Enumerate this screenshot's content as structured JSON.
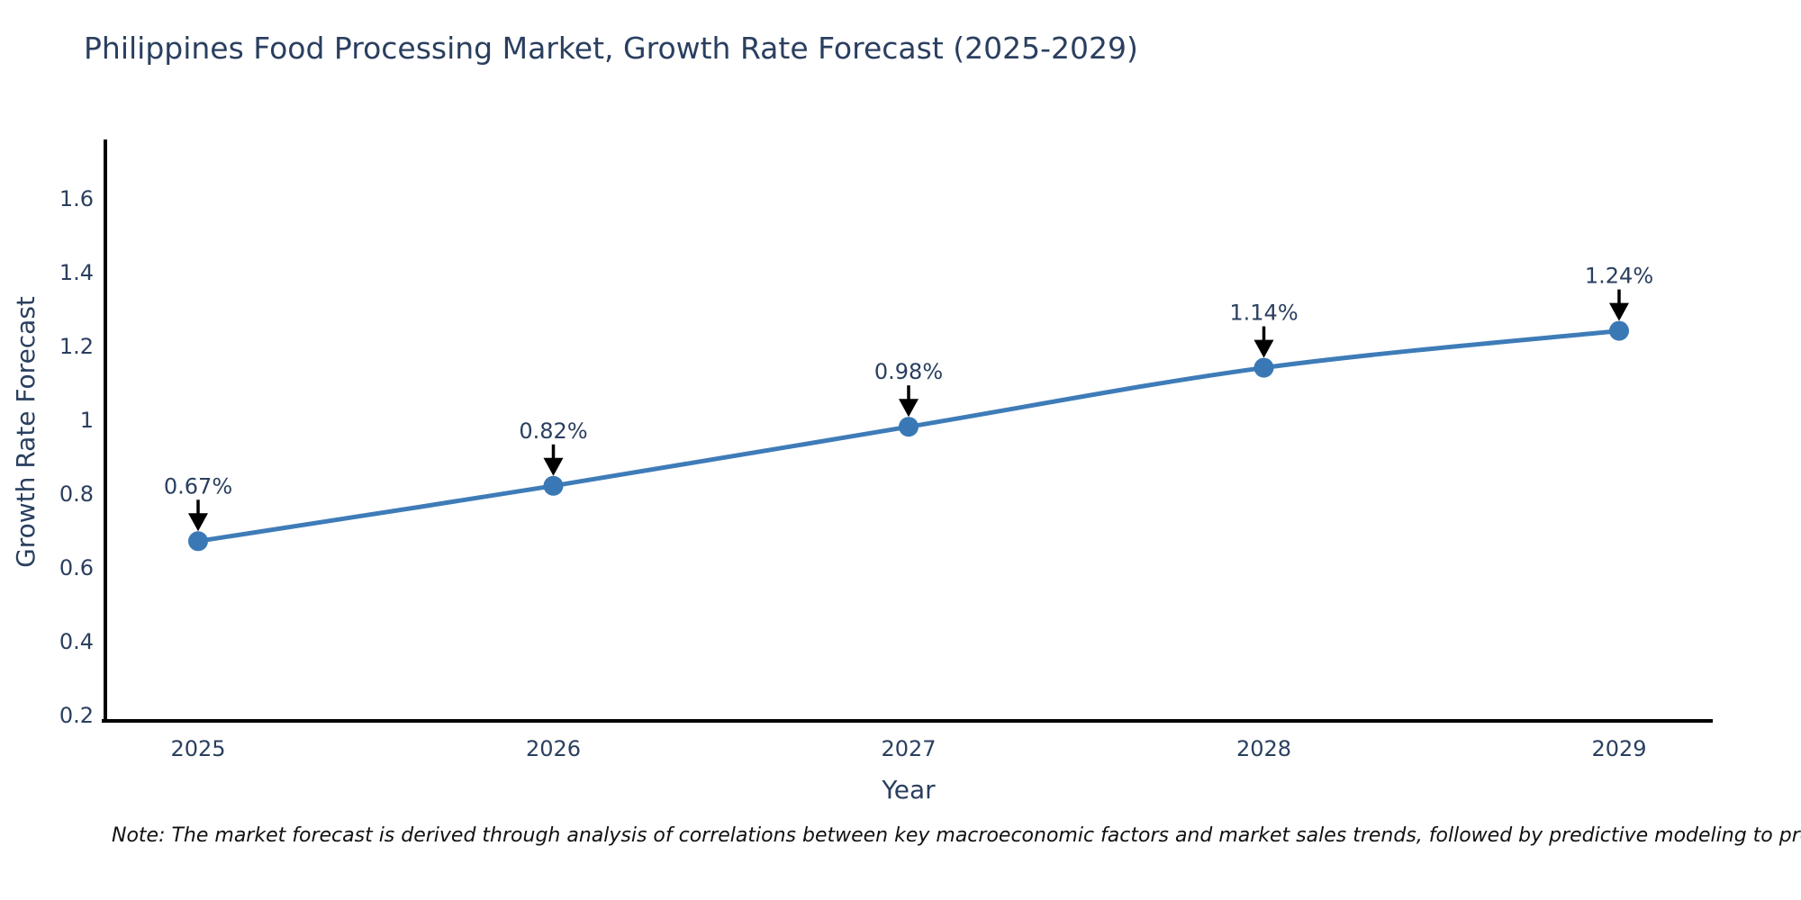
{
  "chart_data": {
    "type": "line",
    "title": "Philippines Food Processing Market, Growth Rate Forecast (2025-2029)",
    "xlabel": "Year",
    "ylabel": "Growth Rate Forecast",
    "categories": [
      "2025",
      "2026",
      "2027",
      "2028",
      "2029"
    ],
    "series": [
      {
        "name": "Growth Rate Forecast",
        "values": [
          0.67,
          0.82,
          0.98,
          1.14,
          1.24
        ]
      }
    ],
    "point_labels": [
      "0.67%",
      "0.82%",
      "0.98%",
      "1.14%",
      "1.24%"
    ],
    "y_ticks": [
      0.2,
      0.4,
      0.6,
      0.8,
      1.0,
      1.2,
      1.4,
      1.6
    ],
    "y_tick_labels": [
      "0.2",
      "0.4",
      "0.6",
      "0.8",
      "1",
      "1.2",
      "1.4",
      "1.6"
    ],
    "ylim": [
      0.18,
      1.77
    ],
    "grid": false,
    "legend_position": "none",
    "line_shape": "spline",
    "colors": {
      "line": "#3e7cb8",
      "marker": "#3a78b5",
      "text": "#2a3f5f",
      "annotation_arrow": "#000000",
      "axis_line": "#000000",
      "background": "#ffffff",
      "note_text": "#111111"
    }
  },
  "note": "Note: The market forecast is derived through analysis of correlations between key macroeconomic factors and market sales trends, followed by predictive modeling to project future sales"
}
